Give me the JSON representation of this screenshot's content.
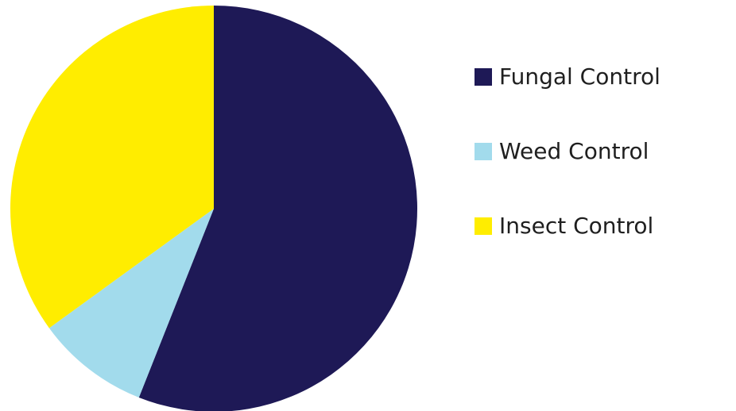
{
  "chart_data": {
    "type": "pie",
    "categories": [
      "Fungal Control",
      "Weed Control",
      "Insect Control"
    ],
    "values": [
      56,
      9,
      35
    ],
    "colors": [
      "#1e1956",
      "#a2dbec",
      "#ffed00"
    ],
    "start_angle_deg": 0,
    "direction": "clockwise",
    "legend_position": "right"
  }
}
